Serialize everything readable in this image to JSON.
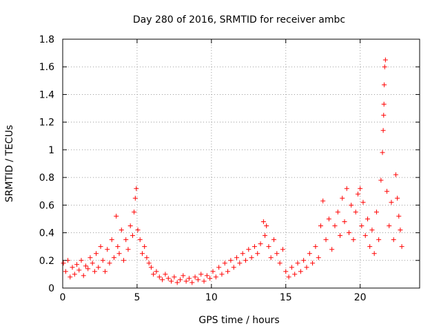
{
  "chart_data": {
    "type": "scatter",
    "title": "Day 280 of 2016, SRMTID for receiver ambc",
    "xlabel": "GPS time / hours",
    "ylabel": "SRMTID / TECUs",
    "xlim": [
      0,
      24
    ],
    "ylim": [
      0,
      1.8
    ],
    "x_ticks": [
      0,
      5,
      10,
      15,
      20
    ],
    "x_tick_labels": [
      "0",
      "5",
      "10",
      "15",
      "20"
    ],
    "y_ticks": [
      0,
      0.2,
      0.4,
      0.6,
      0.8,
      1.0,
      1.2,
      1.4,
      1.6,
      1.8
    ],
    "y_tick_labels": [
      "0",
      "0.2",
      "0.4",
      "0.6",
      "0.8",
      "1",
      "1.2",
      "1.4",
      "1.6",
      "1.8"
    ],
    "grid": true,
    "legend": "none",
    "marker": "+",
    "series": [
      {
        "name": "SRMTID",
        "color": "#ff0000",
        "x": [
          0.05,
          0.2,
          0.35,
          0.5,
          0.65,
          0.8,
          0.95,
          1.1,
          1.25,
          1.4,
          1.55,
          1.7,
          1.85,
          2.0,
          2.15,
          2.25,
          2.4,
          2.55,
          2.7,
          2.85,
          3.0,
          3.15,
          3.3,
          3.45,
          3.6,
          3.7,
          3.8,
          3.95,
          4.1,
          4.25,
          4.4,
          4.55,
          4.7,
          4.8,
          4.88,
          4.95,
          5.05,
          5.2,
          5.35,
          5.5,
          5.65,
          5.8,
          5.95,
          6.1,
          6.3,
          6.5,
          6.7,
          6.9,
          7.1,
          7.3,
          7.5,
          7.7,
          7.9,
          8.1,
          8.3,
          8.5,
          8.7,
          8.9,
          9.1,
          9.3,
          9.5,
          9.7,
          9.9,
          10.1,
          10.3,
          10.5,
          10.7,
          10.9,
          11.1,
          11.3,
          11.5,
          11.7,
          11.9,
          12.1,
          12.3,
          12.5,
          12.7,
          12.9,
          13.1,
          13.3,
          13.5,
          13.6,
          13.7,
          13.85,
          14.0,
          14.2,
          14.4,
          14.6,
          14.8,
          15.0,
          15.2,
          15.4,
          15.6,
          15.8,
          16.0,
          16.2,
          16.4,
          16.6,
          16.8,
          17.0,
          17.2,
          17.35,
          17.5,
          17.7,
          17.9,
          18.1,
          18.3,
          18.5,
          18.65,
          18.8,
          18.95,
          19.1,
          19.25,
          19.4,
          19.55,
          19.7,
          19.85,
          20.0,
          20.1,
          20.2,
          20.35,
          20.5,
          20.65,
          20.8,
          20.95,
          21.1,
          21.25,
          21.4,
          21.5,
          21.55,
          21.58,
          21.6,
          21.62,
          21.65,
          21.7,
          21.8,
          21.95,
          22.1,
          22.25,
          22.4,
          22.5,
          22.6,
          22.7,
          22.8
        ],
        "y": [
          0.18,
          0.12,
          0.2,
          0.08,
          0.15,
          0.1,
          0.17,
          0.13,
          0.2,
          0.09,
          0.16,
          0.14,
          0.22,
          0.18,
          0.12,
          0.25,
          0.15,
          0.3,
          0.2,
          0.12,
          0.28,
          0.18,
          0.35,
          0.22,
          0.52,
          0.3,
          0.25,
          0.42,
          0.2,
          0.35,
          0.28,
          0.45,
          0.38,
          0.55,
          0.65,
          0.72,
          0.42,
          0.35,
          0.25,
          0.3,
          0.22,
          0.18,
          0.15,
          0.1,
          0.12,
          0.08,
          0.06,
          0.1,
          0.07,
          0.05,
          0.08,
          0.04,
          0.06,
          0.09,
          0.05,
          0.07,
          0.04,
          0.08,
          0.06,
          0.1,
          0.05,
          0.09,
          0.07,
          0.12,
          0.08,
          0.15,
          0.1,
          0.18,
          0.12,
          0.2,
          0.15,
          0.22,
          0.18,
          0.25,
          0.2,
          0.28,
          0.22,
          0.3,
          0.25,
          0.32,
          0.48,
          0.38,
          0.45,
          0.3,
          0.22,
          0.35,
          0.25,
          0.18,
          0.28,
          0.12,
          0.08,
          0.15,
          0.1,
          0.18,
          0.12,
          0.2,
          0.15,
          0.25,
          0.18,
          0.3,
          0.22,
          0.45,
          0.63,
          0.35,
          0.5,
          0.28,
          0.45,
          0.55,
          0.38,
          0.65,
          0.48,
          0.72,
          0.4,
          0.6,
          0.35,
          0.55,
          0.68,
          0.72,
          0.45,
          0.62,
          0.38,
          0.5,
          0.3,
          0.42,
          0.25,
          0.55,
          0.35,
          0.78,
          0.98,
          1.14,
          1.25,
          1.33,
          1.47,
          1.6,
          1.65,
          0.7,
          0.45,
          0.62,
          0.35,
          0.82,
          0.65,
          0.52,
          0.42,
          0.3
        ]
      }
    ]
  }
}
